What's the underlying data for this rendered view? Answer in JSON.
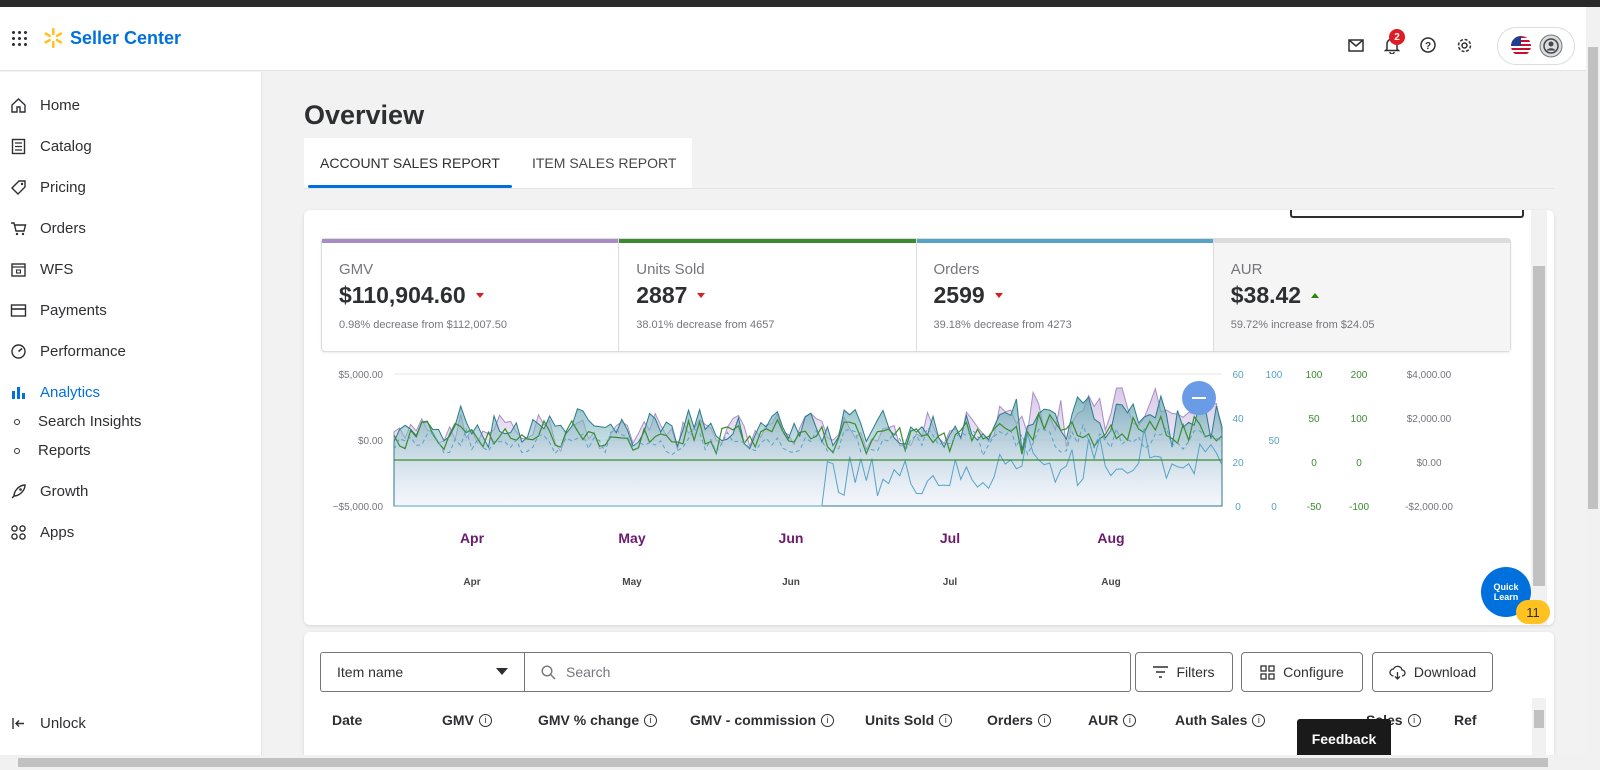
{
  "app": {
    "name": "Seller Center"
  },
  "header": {
    "notification_count": "2"
  },
  "sidebar": {
    "items": [
      {
        "label": "Home"
      },
      {
        "label": "Catalog"
      },
      {
        "label": "Pricing"
      },
      {
        "label": "Orders"
      },
      {
        "label": "WFS"
      },
      {
        "label": "Payments"
      },
      {
        "label": "Performance"
      },
      {
        "label": "Analytics"
      },
      {
        "label": "Growth"
      },
      {
        "label": "Apps"
      }
    ],
    "analytics_sub": [
      {
        "label": "Search Insights"
      },
      {
        "label": "Reports"
      }
    ],
    "footer": {
      "label": "Unlock"
    }
  },
  "page": {
    "title": "Overview"
  },
  "tabs": [
    {
      "label": "ACCOUNT SALES REPORT",
      "active": true
    },
    {
      "label": "ITEM SALES REPORT",
      "active": false
    }
  ],
  "kpis": [
    {
      "label": "GMV",
      "value": "$110,904.60",
      "trend": "down",
      "sub": "0.98% decrease from $112,007.50",
      "color": "#a98cc5"
    },
    {
      "label": "Units Sold",
      "value": "2887",
      "trend": "down",
      "sub": "38.01% decrease from 4657",
      "color": "#3a8c2e"
    },
    {
      "label": "Orders",
      "value": "2599",
      "trend": "down",
      "sub": "39.18% decrease from 4273",
      "color": "#56a3c7"
    },
    {
      "label": "AUR",
      "value": "$38.42",
      "trend": "up",
      "sub": "59.72% increase from $24.05",
      "color": "#dadcde"
    }
  ],
  "chart_data": {
    "type": "area",
    "left_axis": [
      "$5,000.00",
      "$0.00",
      "−$5,000.00"
    ],
    "right_axes": [
      [
        "60",
        "40",
        "20",
        "0"
      ],
      [
        "100",
        "50",
        "0"
      ],
      [
        "100",
        "50",
        "0",
        "-50"
      ],
      [
        "200",
        "100",
        "0",
        "-100"
      ],
      [
        "$4,000.00",
        "$2,000.00",
        "$0.00",
        "-$2,000.00"
      ]
    ],
    "months_primary": [
      "Apr",
      "May",
      "Jun",
      "Jul",
      "Aug"
    ],
    "months_secondary": [
      "Apr",
      "May",
      "Jun",
      "Jul",
      "Aug"
    ],
    "series": [
      {
        "color": "#a98cc5"
      },
      {
        "color": "#3a8c2e"
      },
      {
        "color": "#56a3c7"
      },
      {
        "color": "#2b7a8c"
      }
    ]
  },
  "quick_learn": {
    "label": "Quick Learn",
    "badge": "11"
  },
  "table": {
    "filter_select": "Item name",
    "search_placeholder": "Search",
    "buttons": {
      "filters": "Filters",
      "configure": "Configure",
      "download": "Download"
    },
    "columns": [
      "Date",
      "GMV",
      "GMV % change",
      "GMV - commission",
      "Units Sold",
      "Orders",
      "AUR",
      "Auth Sales",
      "Sales",
      "Ref"
    ]
  },
  "feedback": {
    "label": "Feedback"
  },
  "colors": {
    "brand": "#0071dc",
    "spark": "#ffc220",
    "down": "#de1c24",
    "up": "#2a8703"
  }
}
